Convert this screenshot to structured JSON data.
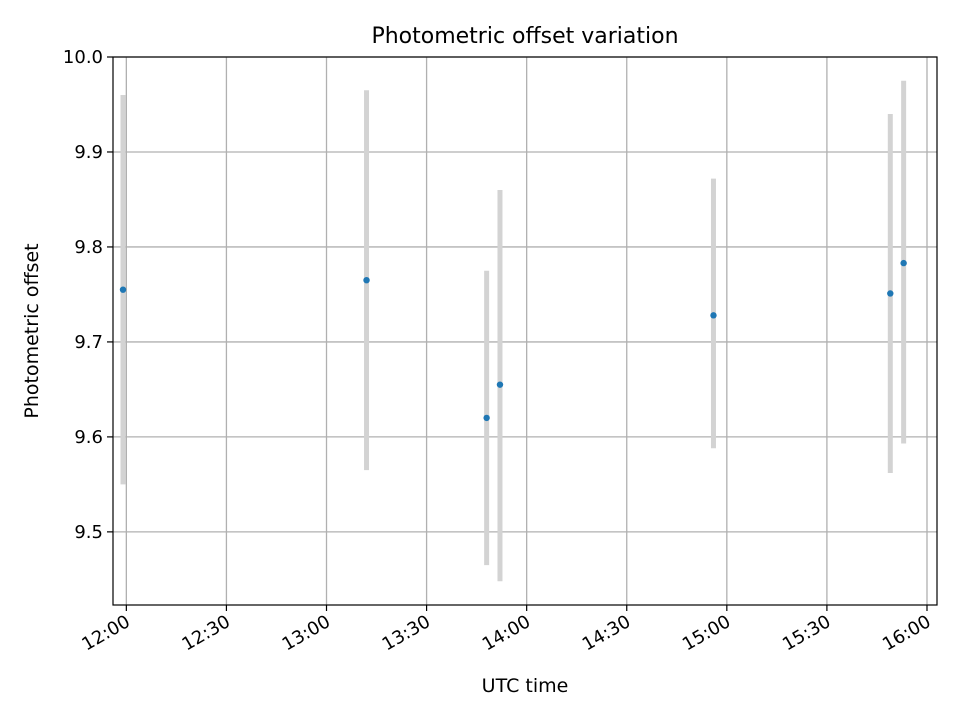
{
  "chart_data": {
    "type": "scatter",
    "title": "Photometric offset variation",
    "xlabel": "UTC time",
    "ylabel": "Photometric offset",
    "x_axis_type": "time",
    "xlim": [
      "11:56",
      "16:03"
    ],
    "ylim": [
      9.423,
      10.0
    ],
    "grid": true,
    "legend": "none",
    "x_ticks": [
      "12:00",
      "12:30",
      "13:00",
      "13:30",
      "14:00",
      "14:30",
      "15:00",
      "15:30",
      "16:00"
    ],
    "y_ticks": [
      "9.5",
      "9.6",
      "9.7",
      "9.8",
      "9.9",
      "10.0"
    ],
    "series": [
      {
        "marker_color": "#1f77b4",
        "errorbar_color": "#d3d3d3",
        "points": [
          {
            "x": "11:59",
            "y": 9.755,
            "y_low": 9.55,
            "y_high": 9.96
          },
          {
            "x": "13:12",
            "y": 9.765,
            "y_low": 9.565,
            "y_high": 9.965
          },
          {
            "x": "13:48",
            "y": 9.62,
            "y_low": 9.465,
            "y_high": 9.775
          },
          {
            "x": "13:52",
            "y": 9.655,
            "y_low": 9.448,
            "y_high": 9.86
          },
          {
            "x": "14:56",
            "y": 9.728,
            "y_low": 9.588,
            "y_high": 9.872
          },
          {
            "x": "15:49",
            "y": 9.751,
            "y_low": 9.562,
            "y_high": 9.94
          },
          {
            "x": "15:53",
            "y": 9.783,
            "y_low": 9.593,
            "y_high": 9.975
          }
        ]
      }
    ]
  }
}
